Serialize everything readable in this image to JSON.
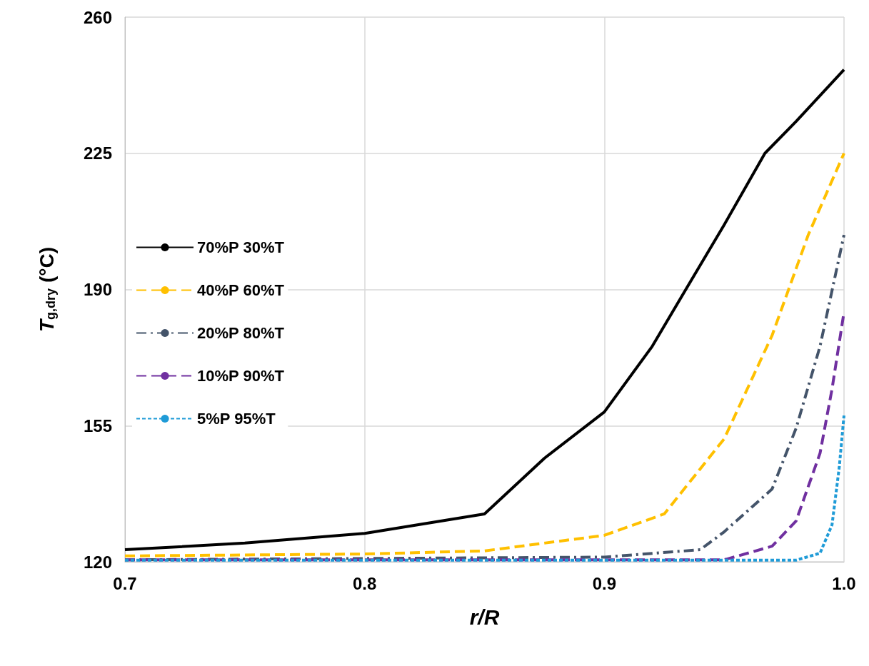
{
  "chart_data": {
    "type": "line",
    "xlabel": "r/R",
    "ylabel": "T$_{g,dry}$ (°C)",
    "xlim": [
      0.7,
      1.0
    ],
    "xticks": [
      0.7,
      0.8,
      0.9,
      {
        "value": 1.0,
        "label": "1.0"
      }
    ],
    "ylim": [
      120,
      260
    ],
    "yticks": [
      120,
      155,
      190,
      225,
      260
    ],
    "grid": true,
    "legend": "left",
    "marker": "none",
    "series": [
      {
        "name": "70%P 30%T",
        "color": "#000000",
        "line_style": "solid",
        "x": [
          0.7,
          0.75,
          0.8,
          0.85,
          0.875,
          0.9,
          0.92,
          0.934,
          0.95,
          0.967,
          0.98,
          1.0
        ],
        "values": [
          123.1,
          124.8,
          127.3,
          132.3,
          146.6,
          158.5,
          175.4,
          190,
          206.6,
          225,
          233.2,
          246.5
        ]
      },
      {
        "name": "40%P 60%T",
        "color": "#ffc000",
        "line_style": "dashed",
        "x": [
          0.7,
          0.8,
          0.85,
          0.9,
          0.925,
          0.95,
          0.97,
          0.985,
          1.0
        ],
        "values": [
          121.5,
          122,
          122.8,
          126.8,
          132.3,
          151.6,
          178.2,
          203.9,
          225
        ]
      },
      {
        "name": "20%P 80%T",
        "color": "#44546a",
        "line_style": "dashdot",
        "x": [
          0.7,
          0.9,
          0.94,
          0.95,
          0.97,
          0.98,
          0.99,
          1.0
        ],
        "values": [
          120.5,
          121.2,
          123.1,
          127.7,
          138.7,
          154.3,
          175.4,
          204
        ]
      },
      {
        "name": "10%P 90%T",
        "color": "#7030a0",
        "line_style": "dashed",
        "x": [
          0.7,
          0.95,
          0.97,
          0.98,
          0.99,
          0.995,
          1.0
        ],
        "values": [
          120.5,
          120.5,
          124,
          130.5,
          147.9,
          164.4,
          184.2
        ]
      },
      {
        "name": "5%P 95%T",
        "color": "#1f9bd7",
        "line_style": "dotted",
        "x": [
          0.7,
          0.98,
          0.99,
          0.995,
          0.998,
          1.0
        ],
        "values": [
          120.4,
          120.4,
          122.2,
          129.5,
          144.2,
          157.6
        ]
      }
    ]
  }
}
